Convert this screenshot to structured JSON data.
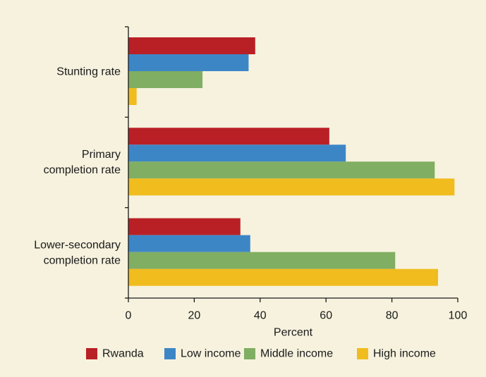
{
  "chart_data": {
    "type": "bar",
    "orientation": "horizontal",
    "categories": [
      "Stunting rate",
      "Primary completion rate",
      "Lower-secondary completion rate"
    ],
    "category_lines": [
      [
        "Stunting rate"
      ],
      [
        "Primary",
        "completion rate"
      ],
      [
        "Lower-secondary",
        "completion rate"
      ]
    ],
    "series": [
      {
        "name": "Rwanda",
        "color": "#b92025",
        "values": [
          38.5,
          61,
          34
        ]
      },
      {
        "name": "Low income",
        "color": "#3d86c6",
        "values": [
          36.5,
          66,
          37
        ]
      },
      {
        "name": "Middle income",
        "color": "#80ae62",
        "values": [
          22.5,
          93,
          81
        ]
      },
      {
        "name": "High income",
        "color": "#f0bc1e",
        "values": [
          2.5,
          99,
          94
        ]
      }
    ],
    "xlabel": "Percent",
    "ylabel": "",
    "xlim": [
      0,
      100
    ],
    "xticks": [
      0,
      20,
      40,
      60,
      80,
      100
    ],
    "grid": false,
    "legend_position": "bottom",
    "background": "#f6f2de"
  }
}
